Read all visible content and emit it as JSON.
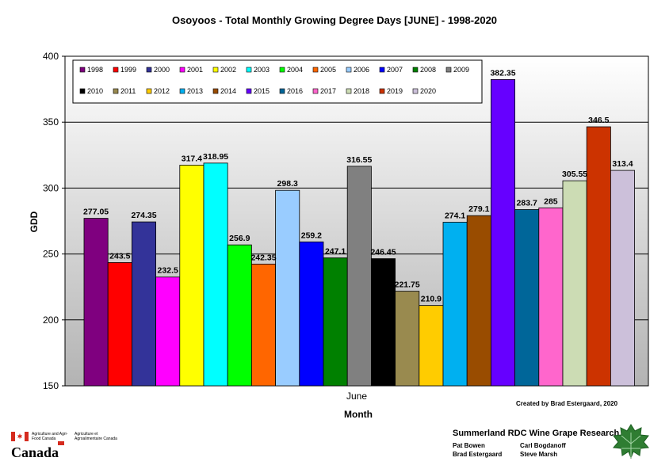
{
  "title": "Osoyoos - Total Monthly Growing Degree Days [JUNE] - 1998-2020",
  "chart_data": {
    "type": "bar",
    "categories": [
      "June"
    ],
    "xlabel": "Month",
    "ylabel": "GDD",
    "ylim": [
      150,
      400
    ],
    "yticks": [
      150,
      200,
      250,
      300,
      350,
      400
    ],
    "grid": true,
    "legend_position": "top-left",
    "series": [
      {
        "name": "1998",
        "values": [
          277.05
        ],
        "color": "#7f007f"
      },
      {
        "name": "1999",
        "values": [
          243.5
        ],
        "color": "#ff0000"
      },
      {
        "name": "2000",
        "values": [
          274.35
        ],
        "color": "#333399"
      },
      {
        "name": "2001",
        "values": [
          232.5
        ],
        "color": "#ff00ff"
      },
      {
        "name": "2002",
        "values": [
          317.4
        ],
        "color": "#ffff00"
      },
      {
        "name": "2003",
        "values": [
          318.95
        ],
        "color": "#00ffff"
      },
      {
        "name": "2004",
        "values": [
          256.9
        ],
        "color": "#00ff00"
      },
      {
        "name": "2005",
        "values": [
          242.35
        ],
        "color": "#ff6600"
      },
      {
        "name": "2006",
        "values": [
          298.3
        ],
        "color": "#99ccff"
      },
      {
        "name": "2007",
        "values": [
          259.2
        ],
        "color": "#0000ff"
      },
      {
        "name": "2008",
        "values": [
          247.1
        ],
        "color": "#008000"
      },
      {
        "name": "2009",
        "values": [
          316.55
        ],
        "color": "#808080"
      },
      {
        "name": "2010",
        "values": [
          246.45
        ],
        "color": "#000000"
      },
      {
        "name": "2011",
        "values": [
          221.75
        ],
        "color": "#998a4f"
      },
      {
        "name": "2012",
        "values": [
          210.9
        ],
        "color": "#ffcc00"
      },
      {
        "name": "2013",
        "values": [
          274.1
        ],
        "color": "#00b0f0"
      },
      {
        "name": "2014",
        "values": [
          279.1
        ],
        "color": "#994c00"
      },
      {
        "name": "2015",
        "values": [
          382.35
        ],
        "color": "#6600ff"
      },
      {
        "name": "2016",
        "values": [
          283.7
        ],
        "color": "#006699"
      },
      {
        "name": "2017",
        "values": [
          285
        ],
        "color": "#ff66cc"
      },
      {
        "name": "2018",
        "values": [
          305.55
        ],
        "color": "#ccdcb4"
      },
      {
        "name": "2019",
        "values": [
          346.5
        ],
        "color": "#cc3300"
      },
      {
        "name": "2020",
        "values": [
          313.4
        ],
        "color": "#ccc0da"
      }
    ],
    "data_labels": [
      "277.05",
      "243.5",
      "274.35",
      "232.5",
      "317.4",
      "318.95",
      "256.9",
      "242.35",
      "298.3",
      "259.2",
      "247.1",
      "316.55",
      "246.45",
      "221.75",
      "210.9",
      "274.1",
      "279.1",
      "382.35",
      "283.7",
      "285",
      "305.55",
      "346.5",
      "313.4"
    ]
  },
  "credit": "Created by Brad Estergaard, 2020",
  "footer": {
    "dept_en": "Agriculture and Agri-Food Canada",
    "dept_fr": "Agriculture et Agroalimentaire Canada",
    "wordmark": "Canada",
    "research_title": "Summerland RDC Wine Grape Research",
    "names": [
      "Pat Bowen",
      "Carl Bogdanoff",
      "Brad Estergaard",
      "Steve Marsh"
    ]
  }
}
